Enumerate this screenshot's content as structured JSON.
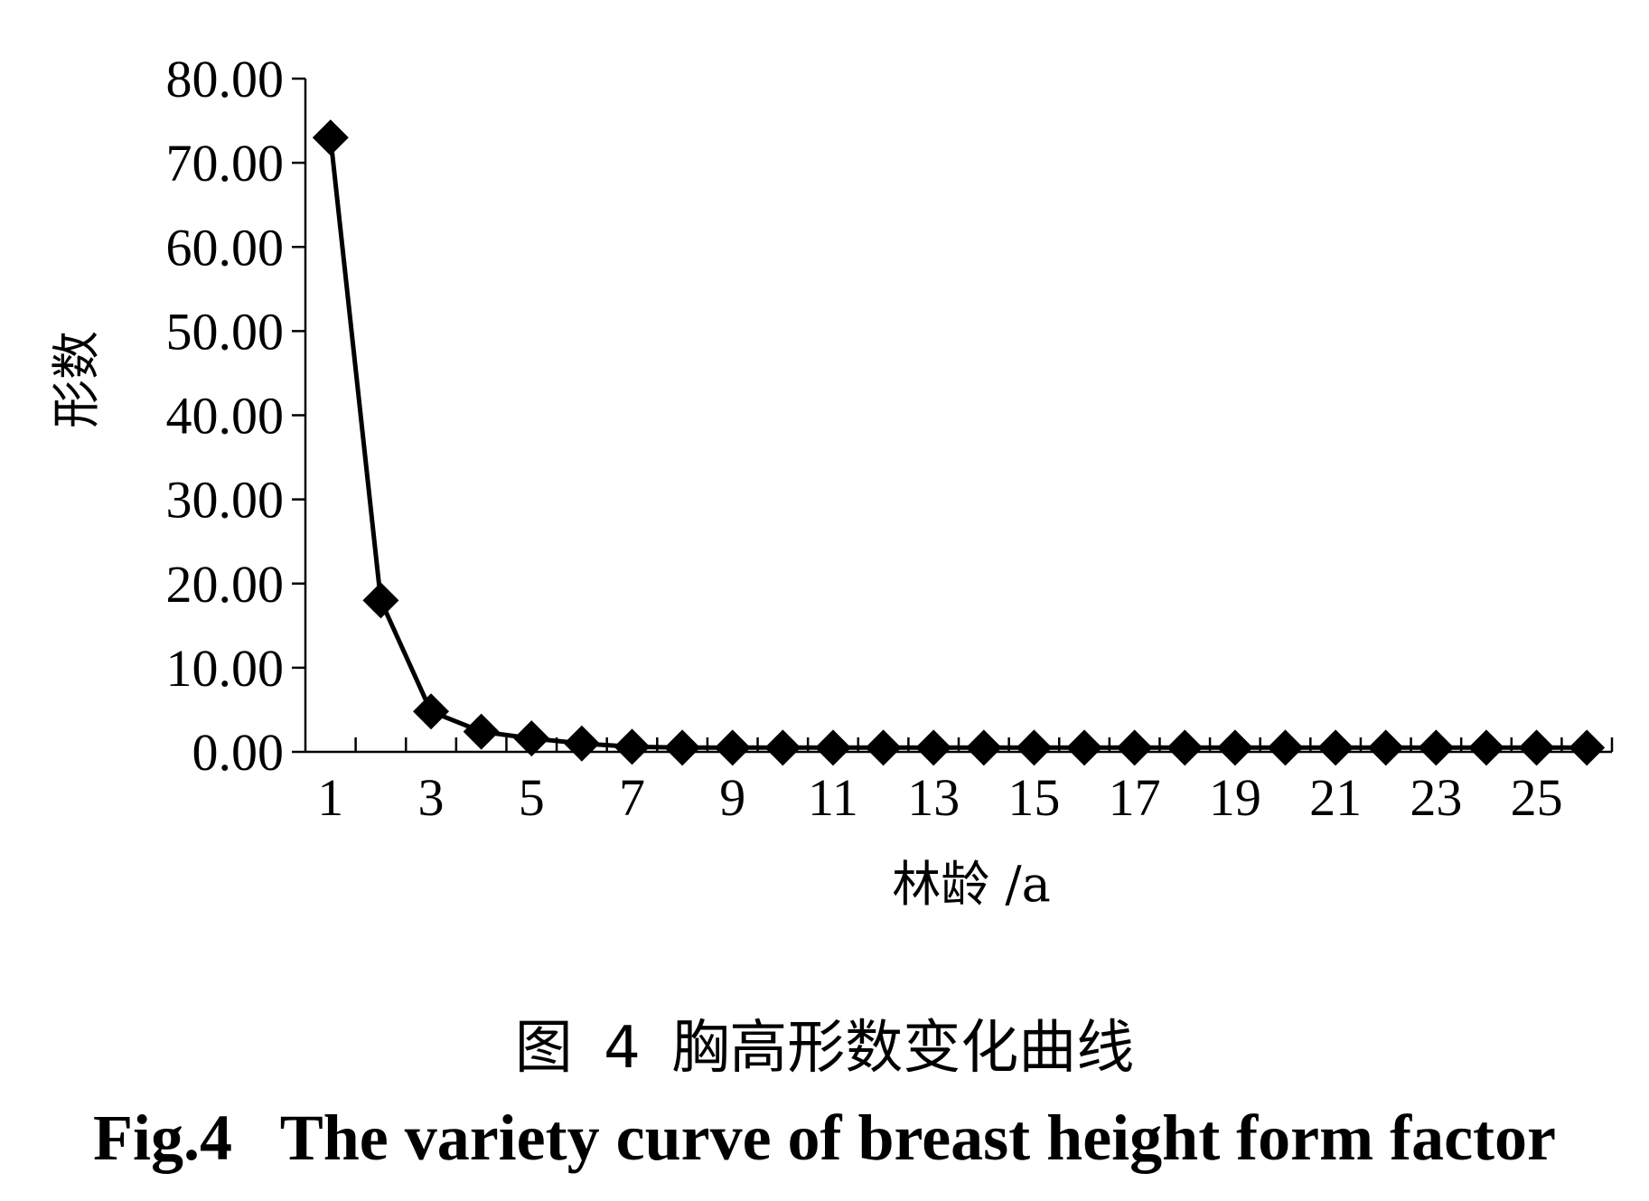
{
  "caption": {
    "cn": "图 4 胸高形数变化曲线",
    "en": "Fig.4   The variety curve of breast height form factor"
  },
  "chart_data": {
    "type": "line",
    "xlabel": "林龄 /a",
    "ylabel": "形数",
    "ylim": [
      0,
      80
    ],
    "y_ticks": [
      "0.00",
      "10.00",
      "20.00",
      "30.00",
      "40.00",
      "50.00",
      "60.00",
      "70.00",
      "80.00"
    ],
    "x_tick_labels": [
      "1",
      "3",
      "5",
      "7",
      "9",
      "11",
      "13",
      "15",
      "17",
      "19",
      "21",
      "23",
      "25"
    ],
    "categories": [
      1,
      2,
      3,
      4,
      5,
      6,
      7,
      8,
      9,
      10,
      11,
      12,
      13,
      14,
      15,
      16,
      17,
      18,
      19,
      20,
      21,
      22,
      23,
      24,
      25,
      26
    ],
    "series": [
      {
        "marker": "diamond",
        "color": "#000000",
        "values": [
          73.0,
          18.0,
          4.8,
          2.4,
          1.6,
          1.0,
          0.6,
          0.5,
          0.5,
          0.5,
          0.5,
          0.5,
          0.5,
          0.5,
          0.5,
          0.5,
          0.5,
          0.5,
          0.5,
          0.5,
          0.5,
          0.5,
          0.5,
          0.5,
          0.5,
          0.5
        ]
      }
    ],
    "grid": false,
    "legend": "none"
  }
}
